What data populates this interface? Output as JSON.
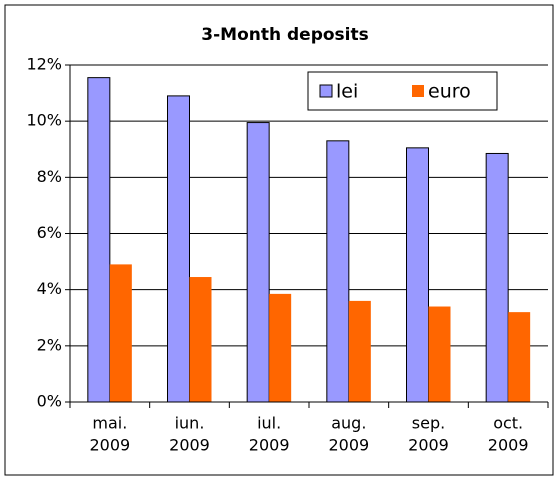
{
  "chart_data": {
    "type": "bar",
    "title": "3-Month deposits",
    "categories": [
      [
        "mai.",
        "2009"
      ],
      [
        "iun.",
        "2009"
      ],
      [
        "iul.",
        "2009"
      ],
      [
        "aug.",
        "2009"
      ],
      [
        "sep.",
        "2009"
      ],
      [
        "oct.",
        "2009"
      ]
    ],
    "series": [
      {
        "name": "lei",
        "color": "#9999ff",
        "values": [
          11.55,
          10.9,
          9.95,
          9.3,
          9.05,
          8.85
        ]
      },
      {
        "name": "euro",
        "color": "#ff6600",
        "values": [
          4.9,
          4.45,
          3.85,
          3.6,
          3.4,
          3.2
        ]
      }
    ],
    "ylim": [
      0,
      12
    ],
    "yticks": [
      {
        "value": 0,
        "label": "0%"
      },
      {
        "value": 2,
        "label": "2%"
      },
      {
        "value": 4,
        "label": "4%"
      },
      {
        "value": 6,
        "label": "6%"
      },
      {
        "value": 8,
        "label": "8%"
      },
      {
        "value": 10,
        "label": "10%"
      },
      {
        "value": 12,
        "label": "12%"
      }
    ],
    "grid": true,
    "legend": "top right"
  }
}
